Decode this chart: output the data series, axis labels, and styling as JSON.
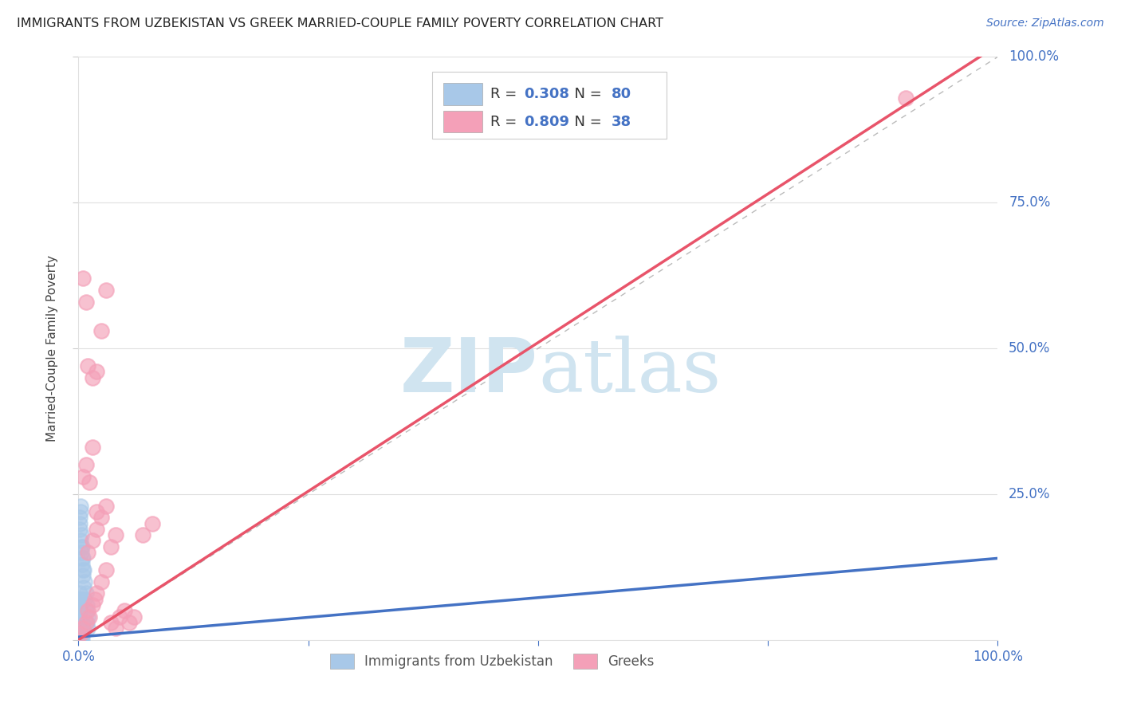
{
  "title": "IMMIGRANTS FROM UZBEKISTAN VS GREEK MARRIED-COUPLE FAMILY POVERTY CORRELATION CHART",
  "source": "Source: ZipAtlas.com",
  "ylabel": "Married-Couple Family Poverty",
  "xmin": 0.0,
  "xmax": 1.0,
  "ymin": 0.0,
  "ymax": 1.0,
  "blue_R": 0.308,
  "blue_N": 80,
  "pink_R": 0.809,
  "pink_N": 38,
  "blue_color": "#a8c8e8",
  "pink_color": "#f4a0b8",
  "blue_line_color": "#4472c4",
  "pink_line_color": "#e8546a",
  "diagonal_color": "#bbbbbb",
  "grid_color": "#e0e0e0",
  "axis_label_color": "#4472c4",
  "watermark_color": "#d0e4f0",
  "legend_label_blue": "Immigrants from Uzbekistan",
  "legend_label_pink": "Greeks",
  "blue_line_x0": 0.0,
  "blue_line_y0": 0.005,
  "blue_line_x1": 1.0,
  "blue_line_y1": 0.14,
  "pink_line_x0": 0.0,
  "pink_line_y0": 0.0,
  "pink_line_x1": 1.0,
  "pink_line_y1": 1.02,
  "blue_scatter_x": [
    0.001,
    0.002,
    0.003,
    0.004,
    0.005,
    0.006,
    0.007,
    0.008,
    0.009,
    0.01,
    0.001,
    0.002,
    0.003,
    0.004,
    0.005,
    0.006,
    0.007,
    0.008,
    0.009,
    0.01,
    0.001,
    0.002,
    0.003,
    0.004,
    0.005,
    0.001,
    0.002,
    0.003,
    0.004,
    0.005,
    0.001,
    0.002,
    0.003,
    0.004,
    0.005,
    0.001,
    0.002,
    0.003,
    0.004,
    0.005,
    0.001,
    0.002,
    0.001,
    0.002,
    0.001,
    0.002,
    0.001,
    0.002,
    0.001,
    0.002,
    0.001,
    0.001,
    0.001,
    0.001,
    0.002,
    0.002,
    0.003,
    0.003,
    0.004,
    0.004,
    0.001,
    0.001,
    0.001,
    0.001,
    0.001,
    0.001,
    0.001,
    0.001,
    0.001,
    0.001,
    0.001,
    0.001,
    0.001,
    0.001,
    0.001,
    0.001,
    0.001,
    0.001,
    0.001,
    0.001
  ],
  "blue_scatter_y": [
    0.2,
    0.22,
    0.18,
    0.16,
    0.14,
    0.12,
    0.1,
    0.08,
    0.06,
    0.04,
    0.19,
    0.17,
    0.15,
    0.13,
    0.11,
    0.09,
    0.07,
    0.05,
    0.03,
    0.02,
    0.21,
    0.23,
    0.16,
    0.14,
    0.12,
    0.08,
    0.06,
    0.04,
    0.03,
    0.02,
    0.01,
    0.02,
    0.01,
    0.02,
    0.01,
    0.02,
    0.01,
    0.02,
    0.01,
    0.02,
    0.03,
    0.03,
    0.04,
    0.04,
    0.05,
    0.05,
    0.06,
    0.06,
    0.07,
    0.07,
    0.0,
    0.01,
    0.0,
    0.01,
    0.0,
    0.01,
    0.0,
    0.01,
    0.0,
    0.01,
    0.0,
    0.0,
    0.01,
    0.0,
    0.01,
    0.0,
    0.01,
    0.0,
    0.01,
    0.0,
    0.01,
    0.0,
    0.01,
    0.0,
    0.01,
    0.0,
    0.01,
    0.0,
    0.01,
    0.0
  ],
  "pink_scatter_x": [
    0.002,
    0.005,
    0.008,
    0.01,
    0.012,
    0.015,
    0.018,
    0.02,
    0.025,
    0.03,
    0.035,
    0.04,
    0.045,
    0.05,
    0.055,
    0.06,
    0.07,
    0.08,
    0.005,
    0.008,
    0.012,
    0.015,
    0.02,
    0.025,
    0.03,
    0.01,
    0.015,
    0.02,
    0.025,
    0.03,
    0.035,
    0.04,
    0.005,
    0.008,
    0.01,
    0.015,
    0.02,
    0.9
  ],
  "pink_scatter_y": [
    0.01,
    0.02,
    0.03,
    0.05,
    0.04,
    0.06,
    0.07,
    0.08,
    0.1,
    0.12,
    0.03,
    0.02,
    0.04,
    0.05,
    0.03,
    0.04,
    0.18,
    0.2,
    0.28,
    0.3,
    0.27,
    0.45,
    0.46,
    0.53,
    0.6,
    0.15,
    0.17,
    0.19,
    0.21,
    0.23,
    0.16,
    0.18,
    0.62,
    0.58,
    0.47,
    0.33,
    0.22,
    0.93
  ]
}
